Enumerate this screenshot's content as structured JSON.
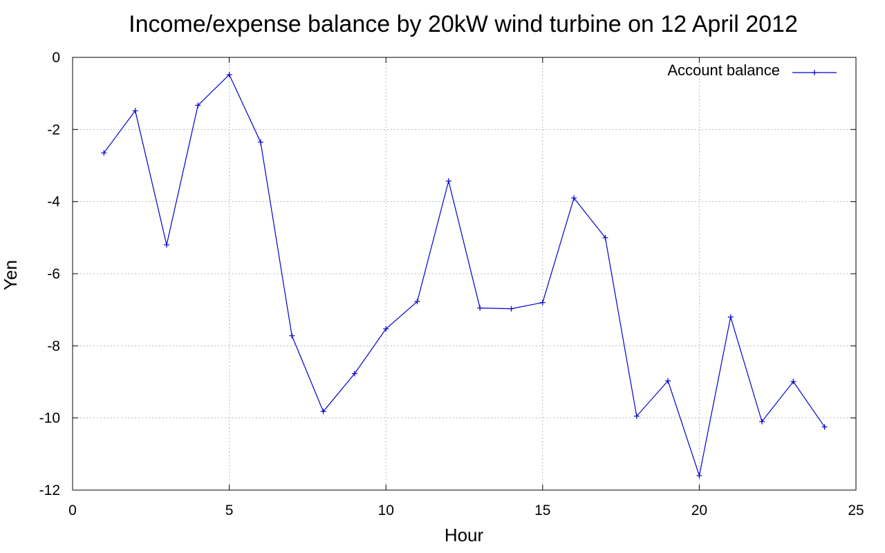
{
  "chart_data": {
    "type": "line",
    "title": "Income/expense balance by 20kW wind turbine on 12 April 2012",
    "xlabel": "Hour",
    "ylabel": "Yen",
    "xlim": [
      0,
      25
    ],
    "ylim": [
      -12,
      0
    ],
    "x_ticks": [
      0,
      5,
      10,
      15,
      20,
      25
    ],
    "y_ticks": [
      0,
      -2,
      -4,
      -6,
      -8,
      -10,
      -12
    ],
    "grid": true,
    "legend_position": "top-right",
    "series": [
      {
        "name": "Account balance",
        "color": "#0000cc",
        "marker": "plus",
        "x": [
          1,
          2,
          3,
          4,
          5,
          6,
          7,
          8,
          9,
          10,
          11,
          12,
          13,
          14,
          15,
          16,
          17,
          18,
          19,
          20,
          21,
          22,
          23,
          24
        ],
        "y": [
          -2.65,
          -1.48,
          -5.2,
          -1.33,
          -0.48,
          -2.35,
          -7.72,
          -9.82,
          -8.77,
          -7.53,
          -6.77,
          -3.43,
          -6.95,
          -6.97,
          -6.8,
          -3.9,
          -5.0,
          -9.95,
          -8.97,
          -11.6,
          -7.2,
          -10.1,
          -8.99,
          -10.25
        ]
      }
    ]
  }
}
